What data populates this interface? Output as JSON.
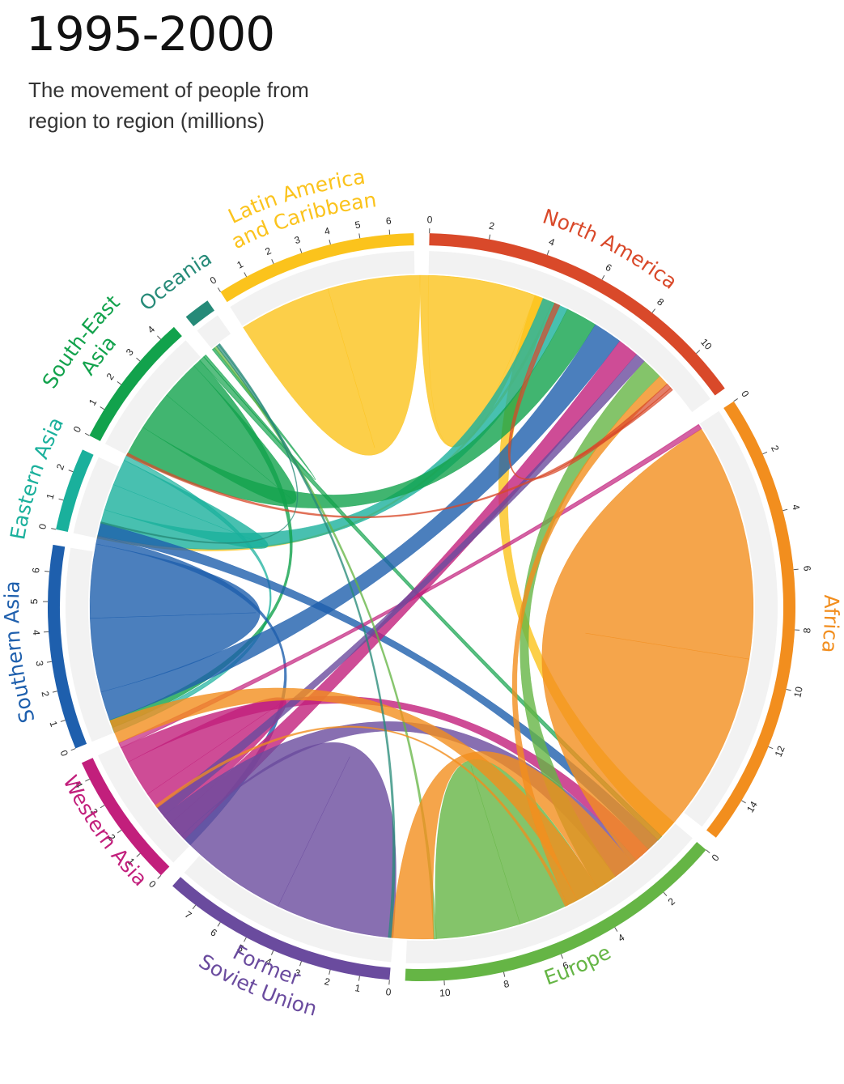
{
  "title": "1995-2000",
  "subtitle": "The movement of people from region to region (millions)",
  "chart_data": {
    "type": "chord",
    "title": "1995-2000",
    "subtitle": "The movement of people from region to region (millions)",
    "regions": [
      {
        "name": "North America",
        "label_lines": [
          "North America"
        ],
        "color": "#d9492a",
        "total": 11.5,
        "ticks": [
          0,
          2,
          4,
          6,
          8,
          10
        ]
      },
      {
        "name": "Africa",
        "label_lines": [
          "Africa"
        ],
        "color": "#f28e1e",
        "total": 15.5,
        "ticks": [
          0,
          2,
          4,
          6,
          8,
          10,
          12,
          14
        ]
      },
      {
        "name": "Europe",
        "label_lines": [
          "Europe"
        ],
        "color": "#65b545",
        "total": 11.3,
        "ticks": [
          0,
          2,
          4,
          6,
          8,
          10
        ]
      },
      {
        "name": "Former Soviet Union",
        "label_lines": [
          "Former",
          "Soviet Union"
        ],
        "color": "#6a4b9e",
        "total": 8.0,
        "ticks": [
          0,
          1,
          2,
          3,
          4,
          5,
          6,
          7
        ]
      },
      {
        "name": "Western Asia",
        "label_lines": [
          "Western Asia"
        ],
        "color": "#c21f7c",
        "total": 4.6,
        "ticks": [
          0,
          1,
          2,
          3,
          4
        ]
      },
      {
        "name": "Southern Asia",
        "label_lines": [
          "Southern Asia"
        ],
        "color": "#1e5fad",
        "total": 6.9,
        "ticks": [
          0,
          1,
          2,
          3,
          4,
          5,
          6
        ]
      },
      {
        "name": "Eastern Asia",
        "label_lines": [
          "Eastern Asia"
        ],
        "color": "#1ab09c",
        "total": 2.8,
        "ticks": [
          0,
          1,
          2
        ]
      },
      {
        "name": "South-East Asia",
        "label_lines": [
          "South-East",
          "Asia"
        ],
        "color": "#12a24c",
        "total": 4.6,
        "ticks": [
          0,
          1,
          2,
          3,
          4
        ]
      },
      {
        "name": "Oceania",
        "label_lines": [
          "Oceania"
        ],
        "color": "#268a78",
        "total": 0.9,
        "ticks": []
      },
      {
        "name": "Latin America and Caribbean",
        "label_lines": [
          "Latin America",
          "and Caribbean"
        ],
        "color": "#fbc31c",
        "total": 6.8,
        "ticks": [
          0,
          1,
          2,
          3,
          4,
          5,
          6
        ]
      }
    ],
    "flows": [
      {
        "from": "Latin America and Caribbean",
        "to": "Latin America and Caribbean",
        "value": 3.5
      },
      {
        "from": "Latin America and Caribbean",
        "to": "North America",
        "value": 4.4
      },
      {
        "from": "Latin America and Caribbean",
        "to": "Europe",
        "value": 0.7
      },
      {
        "from": "Latin America and Caribbean",
        "to": "Eastern Asia",
        "value": 0.1
      },
      {
        "from": "Eastern Asia",
        "to": "North America",
        "value": 1.0
      },
      {
        "from": "Eastern Asia",
        "to": "Eastern Asia",
        "value": 1.0
      },
      {
        "from": "Eastern Asia",
        "to": "Southern Asia",
        "value": 0.2
      },
      {
        "from": "South-East Asia",
        "to": "North America",
        "value": 1.2
      },
      {
        "from": "South-East Asia",
        "to": "South-East Asia",
        "value": 1.5
      },
      {
        "from": "South-East Asia",
        "to": "Southern Asia",
        "value": 0.3
      },
      {
        "from": "South-East Asia",
        "to": "Europe",
        "value": 0.2
      },
      {
        "from": "South-East Asia",
        "to": "Oceania",
        "value": 0.1
      },
      {
        "from": "Southern Asia",
        "to": "North America",
        "value": 1.1
      },
      {
        "from": "Southern Asia",
        "to": "Southern Asia",
        "value": 2.8
      },
      {
        "from": "Southern Asia",
        "to": "Western Asia",
        "value": 0.3
      },
      {
        "from": "Southern Asia",
        "to": "Europe",
        "value": 0.5
      },
      {
        "from": "Western Asia",
        "to": "North America",
        "value": 0.8
      },
      {
        "from": "Western Asia",
        "to": "Western Asia",
        "value": 1.4
      },
      {
        "from": "Western Asia",
        "to": "Europe",
        "value": 0.6
      },
      {
        "from": "Western Asia",
        "to": "Africa",
        "value": 0.2
      },
      {
        "from": "Former Soviet Union",
        "to": "Former Soviet Union",
        "value": 4.5
      },
      {
        "from": "Former Soviet Union",
        "to": "Europe",
        "value": 1.0
      },
      {
        "from": "Former Soviet Union",
        "to": "North America",
        "value": 0.4
      },
      {
        "from": "Europe",
        "to": "North America",
        "value": 0.8
      },
      {
        "from": "Europe",
        "to": "Europe",
        "value": 3.2
      },
      {
        "from": "Europe",
        "to": "Oceania",
        "value": 0.1
      },
      {
        "from": "Africa",
        "to": "Africa",
        "value": 9.0
      },
      {
        "from": "Africa",
        "to": "Europe",
        "value": 1.6
      },
      {
        "from": "Africa",
        "to": "Western Asia",
        "value": 0.9
      },
      {
        "from": "Africa",
        "to": "North America",
        "value": 0.4
      },
      {
        "from": "Africa",
        "to": "Former Soviet Union",
        "value": 0.1
      },
      {
        "from": "North America",
        "to": "Latin America and Caribbean",
        "value": 0.2
      },
      {
        "from": "North America",
        "to": "Eastern Asia",
        "value": 0.1
      },
      {
        "from": "Oceania",
        "to": "Europe",
        "value": 0.1
      },
      {
        "from": "Oceania",
        "to": "Southern Asia",
        "value": 0.05
      }
    ]
  }
}
